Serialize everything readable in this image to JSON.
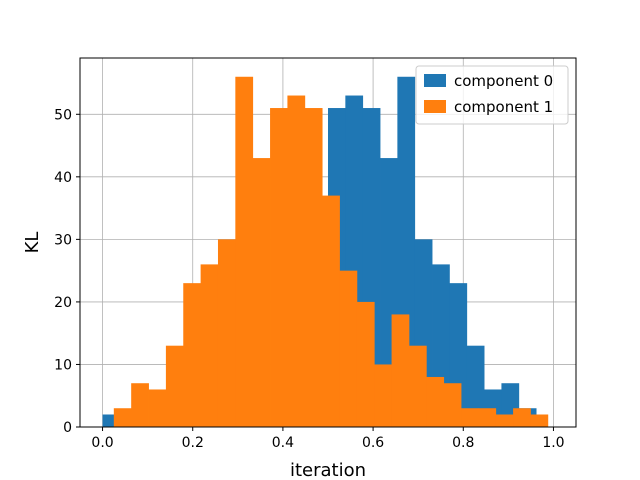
{
  "chart_data": {
    "type": "bar",
    "subtype": "overlapping-histogram",
    "xlabel": "iteration",
    "ylabel": "KL",
    "xlim": [
      -0.05,
      1.05
    ],
    "ylim": [
      0,
      59
    ],
    "xticks": [
      0.0,
      0.2,
      0.4,
      0.6,
      0.8,
      1.0
    ],
    "yticks": [
      0,
      10,
      20,
      30,
      40,
      50
    ],
    "grid": true,
    "legend_position": "top-right",
    "series": [
      {
        "name": "component 0",
        "color": "#1f77b4",
        "bin_edges": [
          0.0,
          0.038462,
          0.076923,
          0.115385,
          0.153846,
          0.192308,
          0.230769,
          0.269231,
          0.307692,
          0.346154,
          0.384615,
          0.423077,
          0.461538,
          0.5,
          0.538462,
          0.576923,
          0.615385,
          0.653846,
          0.692308,
          0.730769,
          0.769231,
          0.807692,
          0.846154,
          0.884615,
          0.923077,
          0.961538,
          1.0
        ],
        "values": [
          2,
          0,
          0,
          0,
          0,
          0,
          0,
          0,
          0,
          0,
          0,
          0,
          0,
          51,
          53,
          51,
          43,
          56,
          30,
          26,
          23,
          13,
          6,
          7,
          3,
          0
        ]
      },
      {
        "name": "component 1",
        "color": "#ff7f0e",
        "bin_edges": [
          0.025,
          0.0635,
          0.102,
          0.1405,
          0.179,
          0.2175,
          0.256,
          0.2945,
          0.333,
          0.3715,
          0.41,
          0.4485,
          0.487,
          0.5255,
          0.564,
          0.6025,
          0.641,
          0.6795,
          0.718,
          0.7565,
          0.795,
          0.8335,
          0.872,
          0.9105,
          0.949,
          0.9875
        ],
        "values": [
          3,
          7,
          6,
          13,
          23,
          26,
          30,
          56,
          43,
          51,
          53,
          51,
          37,
          25,
          20,
          10,
          18,
          13,
          8,
          7,
          3,
          3,
          2,
          3,
          2
        ]
      }
    ]
  }
}
